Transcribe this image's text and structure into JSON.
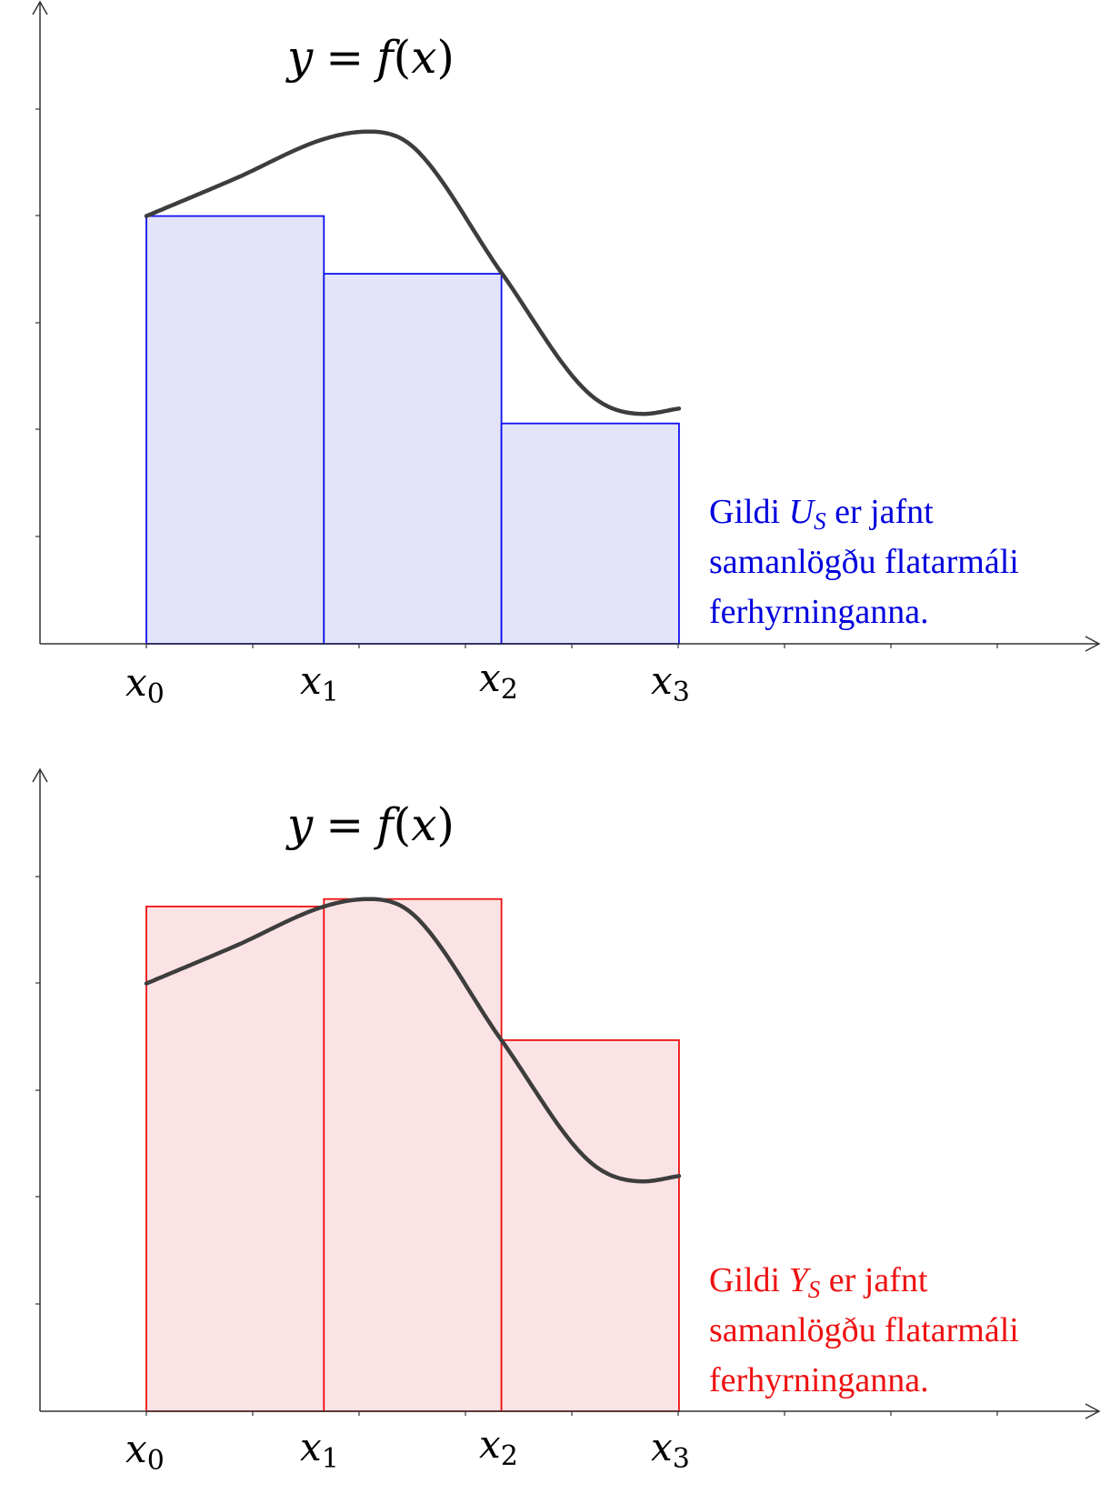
{
  "panels": [
    {
      "id": "upper",
      "equation": {
        "lhs": "y",
        "eq": "=",
        "fn": "f",
        "lp": "(",
        "arg": "x",
        "rp": ")"
      },
      "x_labels": [
        {
          "base": "x",
          "sub": "0"
        },
        {
          "base": "x",
          "sub": "1"
        },
        {
          "base": "x",
          "sub": "2"
        },
        {
          "base": "x",
          "sub": "3"
        }
      ],
      "note": {
        "color": "#0000dd",
        "line1_pre": "Gildi ",
        "sym": "U",
        "sym_sub": "S",
        "line1_post": " er jafnt",
        "line2": "samanlögðu flatarmáli",
        "line3": "ferhyrninganna."
      },
      "rect_stroke": "#1010ee",
      "rect_fill": "#e3e4fa",
      "sum_type": "lower",
      "rect_heights": [
        4,
        3.46,
        2.06
      ]
    },
    {
      "id": "lower",
      "equation": {
        "lhs": "y",
        "eq": "=",
        "fn": "f",
        "lp": "(",
        "arg": "x",
        "rp": ")"
      },
      "x_labels": [
        {
          "base": "x",
          "sub": "0"
        },
        {
          "base": "x",
          "sub": "1"
        },
        {
          "base": "x",
          "sub": "2"
        },
        {
          "base": "x",
          "sub": "3"
        }
      ],
      "note": {
        "color": "#ee1111",
        "line1_pre": "Gildi ",
        "sym": "Y",
        "sym_sub": "S",
        "line1_post": " er jafnt",
        "line2": "samanlögðu flatarmáli",
        "line3": "ferhyrninganna."
      },
      "rect_stroke": "#ee1111",
      "rect_fill": "#fbe3e5",
      "sum_type": "upper",
      "rect_heights": [
        4.72,
        4.79,
        3.47
      ]
    }
  ],
  "curve": {
    "x": [
      0,
      0.5,
      1,
      1.25,
      1.5,
      2,
      2.5,
      2.8,
      3.0
    ],
    "y": [
      4.0,
      4.35,
      4.72,
      4.79,
      4.65,
      3.47,
      2.33,
      2.15,
      2.2
    ]
  },
  "axis_color": "#333333",
  "curve_color": "#3d3d3d"
}
